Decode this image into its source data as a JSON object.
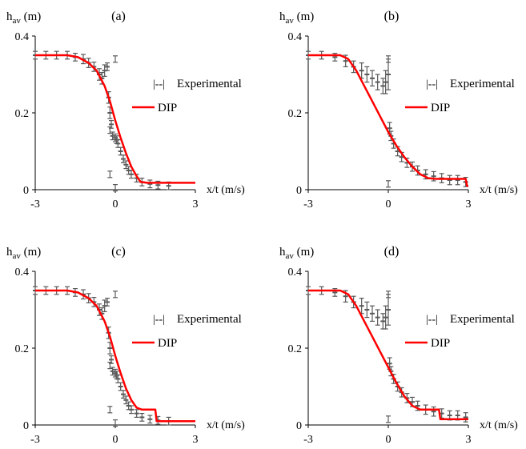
{
  "chart_data": [
    {
      "type": "scatter",
      "panel_label": "(a)",
      "ylabel_main": "h",
      "ylabel_sub": "av",
      "ylabel_unit": " (m)",
      "xlabel": "x/t (m/s)",
      "xlim": [
        -3,
        3
      ],
      "ylim": [
        0,
        0.4
      ],
      "x_ticks": [
        "-3",
        "0",
        "3"
      ],
      "y_ticks": [
        "0",
        "0.2",
        "0.4"
      ],
      "legend": [
        {
          "marker": "|--|",
          "label": "Experimental"
        },
        {
          "marker": "line",
          "label": "DIP"
        }
      ],
      "series": [
        {
          "name": "Experimental",
          "color": "#595959",
          "kind": "errorbar",
          "x": [
            -3.0,
            -2.6,
            -2.2,
            -1.8,
            -1.5,
            -1.2,
            -1.0,
            -0.8,
            -0.6,
            -0.5,
            -0.4,
            -0.3,
            -0.25,
            -0.2,
            -0.15,
            -0.1,
            0.0,
            0.05,
            0.1,
            0.2,
            0.3,
            0.4,
            0.5,
            0.6,
            0.8,
            1.0,
            1.3,
            1.6,
            2.0
          ],
          "y": [
            0.35,
            0.35,
            0.35,
            0.35,
            0.345,
            0.34,
            0.33,
            0.32,
            0.3,
            0.29,
            0.31,
            0.32,
            0.24,
            0.2,
            0.17,
            0.14,
            0.135,
            0.13,
            0.12,
            0.1,
            0.08,
            0.065,
            0.05,
            0.04,
            0.03,
            0.02,
            0.015,
            0.012,
            0.01
          ],
          "err": [
            0.01,
            0.01,
            0.01,
            0.01,
            0.01,
            0.012,
            0.012,
            0.012,
            0.015,
            0.015,
            0.015,
            0.01,
            0.015,
            0.015,
            0.01,
            0.01,
            0.01,
            0.01,
            0.01,
            0.01,
            0.01,
            0.01,
            0.01,
            0.01,
            0.01,
            0.01,
            0.01,
            0.01,
            0.01
          ]
        },
        {
          "name": "DIP",
          "color": "#ff0000",
          "kind": "line",
          "x": [
            -3.0,
            -1.8,
            -1.4,
            -1.0,
            -0.7,
            -0.4,
            -0.2,
            0.0,
            0.2,
            0.4,
            0.6,
            0.8,
            0.95,
            1.2,
            2.0,
            3.0
          ],
          "y": [
            0.35,
            0.35,
            0.345,
            0.33,
            0.31,
            0.27,
            0.23,
            0.18,
            0.135,
            0.095,
            0.06,
            0.035,
            0.02,
            0.018,
            0.018,
            0.018
          ]
        }
      ],
      "outliers": [
        {
          "x": 0.0,
          "y": 0.34
        },
        {
          "x": -0.2,
          "y": 0.155
        },
        {
          "x": -0.2,
          "y": 0.04
        },
        {
          "x": 0.0,
          "y": 0.005
        }
      ]
    },
    {
      "type": "scatter",
      "panel_label": "(b)",
      "ylabel_main": "h",
      "ylabel_sub": "av",
      "ylabel_unit": " (m)",
      "xlabel": "x/t (m/s)",
      "xlim": [
        -3,
        3
      ],
      "ylim": [
        0,
        0.4
      ],
      "x_ticks": [
        "-3",
        "0",
        "3"
      ],
      "y_ticks": [
        "0",
        "0.2",
        "0.4"
      ],
      "legend": [
        {
          "marker": "|--|",
          "label": "Experimental"
        },
        {
          "marker": "line",
          "label": "DIP"
        }
      ],
      "series": [
        {
          "name": "Experimental",
          "color": "#595959",
          "kind": "errorbar",
          "x": [
            -3.0,
            -2.5,
            -2.0,
            -1.6,
            -1.3,
            -1.0,
            -0.8,
            -0.6,
            -0.4,
            -0.2,
            -0.1,
            0.0,
            0.05,
            0.1,
            0.2,
            0.35,
            0.5,
            0.7,
            0.9,
            1.1,
            1.4,
            1.7,
            2.0,
            2.3,
            2.6,
            2.9
          ],
          "y": [
            0.35,
            0.35,
            0.345,
            0.335,
            0.32,
            0.31,
            0.3,
            0.29,
            0.28,
            0.27,
            0.28,
            0.3,
            0.16,
            0.14,
            0.12,
            0.1,
            0.085,
            0.07,
            0.06,
            0.05,
            0.04,
            0.035,
            0.03,
            0.025,
            0.025,
            0.02
          ],
          "err": [
            0.01,
            0.01,
            0.01,
            0.015,
            0.015,
            0.02,
            0.02,
            0.02,
            0.02,
            0.02,
            0.03,
            0.04,
            0.015,
            0.012,
            0.012,
            0.012,
            0.012,
            0.012,
            0.012,
            0.012,
            0.012,
            0.012,
            0.012,
            0.012,
            0.012,
            0.012
          ]
        },
        {
          "name": "DIP",
          "color": "#ff0000",
          "kind": "line",
          "x": [
            -3.0,
            -1.8,
            -1.5,
            -1.2,
            -0.9,
            -0.6,
            -0.3,
            0.0,
            0.3,
            0.6,
            0.9,
            1.2,
            1.5,
            1.8,
            2.2,
            2.9,
            2.95,
            3.0
          ],
          "y": [
            0.35,
            0.35,
            0.34,
            0.31,
            0.27,
            0.23,
            0.19,
            0.15,
            0.115,
            0.085,
            0.06,
            0.04,
            0.03,
            0.028,
            0.028,
            0.028,
            0.01,
            0.01
          ]
        }
      ],
      "outliers": [
        {
          "x": 0.0,
          "y": 0.015
        },
        {
          "x": 0.0,
          "y": 0.34
        }
      ]
    },
    {
      "type": "scatter",
      "panel_label": "(c)",
      "ylabel_main": "h",
      "ylabel_sub": "av",
      "ylabel_unit": " (m)",
      "xlabel": "x/t (m/s)",
      "xlim": [
        -3,
        3
      ],
      "ylim": [
        0,
        0.4
      ],
      "x_ticks": [
        "-3",
        "0",
        "3"
      ],
      "y_ticks": [
        "0",
        "0.2",
        "0.4"
      ],
      "legend": [
        {
          "marker": "|--|",
          "label": "Experimental"
        },
        {
          "marker": "line",
          "label": "DIP"
        }
      ],
      "series": [
        {
          "name": "Experimental",
          "color": "#595959",
          "kind": "errorbar",
          "x": [
            -3.0,
            -2.6,
            -2.2,
            -1.8,
            -1.5,
            -1.2,
            -1.0,
            -0.8,
            -0.6,
            -0.5,
            -0.4,
            -0.3,
            -0.25,
            -0.2,
            -0.15,
            -0.1,
            0.0,
            0.05,
            0.1,
            0.2,
            0.3,
            0.4,
            0.5,
            0.6,
            0.8,
            1.0,
            1.3,
            1.6,
            2.0
          ],
          "y": [
            0.35,
            0.35,
            0.35,
            0.35,
            0.345,
            0.34,
            0.33,
            0.32,
            0.3,
            0.29,
            0.31,
            0.32,
            0.24,
            0.2,
            0.17,
            0.14,
            0.135,
            0.13,
            0.12,
            0.1,
            0.08,
            0.065,
            0.05,
            0.04,
            0.03,
            0.02,
            0.015,
            0.012,
            0.01
          ],
          "err": [
            0.01,
            0.01,
            0.01,
            0.01,
            0.01,
            0.012,
            0.012,
            0.012,
            0.015,
            0.015,
            0.015,
            0.01,
            0.015,
            0.015,
            0.01,
            0.01,
            0.01,
            0.01,
            0.01,
            0.01,
            0.01,
            0.01,
            0.01,
            0.01,
            0.01,
            0.01,
            0.01,
            0.01,
            0.01
          ]
        },
        {
          "name": "DIP",
          "color": "#ff0000",
          "kind": "line",
          "x": [
            -3.0,
            -1.8,
            -1.4,
            -1.0,
            -0.7,
            -0.4,
            -0.2,
            0.0,
            0.2,
            0.4,
            0.6,
            0.8,
            1.0,
            1.5,
            1.55,
            2.0,
            3.0
          ],
          "y": [
            0.35,
            0.35,
            0.345,
            0.33,
            0.31,
            0.27,
            0.23,
            0.18,
            0.135,
            0.095,
            0.065,
            0.045,
            0.04,
            0.04,
            0.01,
            0.01,
            0.01
          ]
        }
      ],
      "outliers": [
        {
          "x": 0.0,
          "y": 0.34
        },
        {
          "x": -0.2,
          "y": 0.155
        },
        {
          "x": -0.2,
          "y": 0.04
        },
        {
          "x": 0.0,
          "y": 0.005
        }
      ]
    },
    {
      "type": "scatter",
      "panel_label": "(d)",
      "ylabel_main": "h",
      "ylabel_sub": "av",
      "ylabel_unit": " (m)",
      "xlabel": "x/t (m/s)",
      "xlim": [
        -3,
        3
      ],
      "ylim": [
        0,
        0.4
      ],
      "x_ticks": [
        "-3",
        "0",
        "3"
      ],
      "y_ticks": [
        "0",
        "0.2",
        "0.4"
      ],
      "legend": [
        {
          "marker": "|--|",
          "label": "Experimental"
        },
        {
          "marker": "line",
          "label": "DIP"
        }
      ],
      "series": [
        {
          "name": "Experimental",
          "color": "#595959",
          "kind": "errorbar",
          "x": [
            -3.0,
            -2.5,
            -2.0,
            -1.6,
            -1.3,
            -1.0,
            -0.8,
            -0.6,
            -0.4,
            -0.2,
            -0.1,
            0.0,
            0.05,
            0.1,
            0.2,
            0.35,
            0.5,
            0.7,
            0.9,
            1.1,
            1.4,
            1.7,
            2.0,
            2.3,
            2.6,
            2.9
          ],
          "y": [
            0.35,
            0.35,
            0.345,
            0.335,
            0.32,
            0.31,
            0.3,
            0.29,
            0.28,
            0.27,
            0.28,
            0.3,
            0.16,
            0.14,
            0.12,
            0.1,
            0.085,
            0.07,
            0.06,
            0.05,
            0.04,
            0.035,
            0.03,
            0.025,
            0.025,
            0.02
          ],
          "err": [
            0.01,
            0.01,
            0.01,
            0.015,
            0.015,
            0.02,
            0.02,
            0.02,
            0.02,
            0.02,
            0.03,
            0.04,
            0.015,
            0.012,
            0.012,
            0.012,
            0.012,
            0.012,
            0.012,
            0.012,
            0.012,
            0.012,
            0.012,
            0.012,
            0.012,
            0.012
          ]
        },
        {
          "name": "DIP",
          "color": "#ff0000",
          "kind": "line",
          "x": [
            -3.0,
            -1.8,
            -1.5,
            -1.2,
            -0.9,
            -0.6,
            -0.3,
            0.0,
            0.3,
            0.6,
            0.9,
            1.2,
            1.5,
            1.9,
            1.95,
            2.2,
            3.0
          ],
          "y": [
            0.35,
            0.35,
            0.34,
            0.31,
            0.27,
            0.23,
            0.19,
            0.15,
            0.11,
            0.075,
            0.05,
            0.04,
            0.04,
            0.04,
            0.015,
            0.015,
            0.015
          ]
        }
      ],
      "outliers": [
        {
          "x": 0.0,
          "y": 0.015
        },
        {
          "x": 0.0,
          "y": 0.34
        }
      ]
    }
  ]
}
